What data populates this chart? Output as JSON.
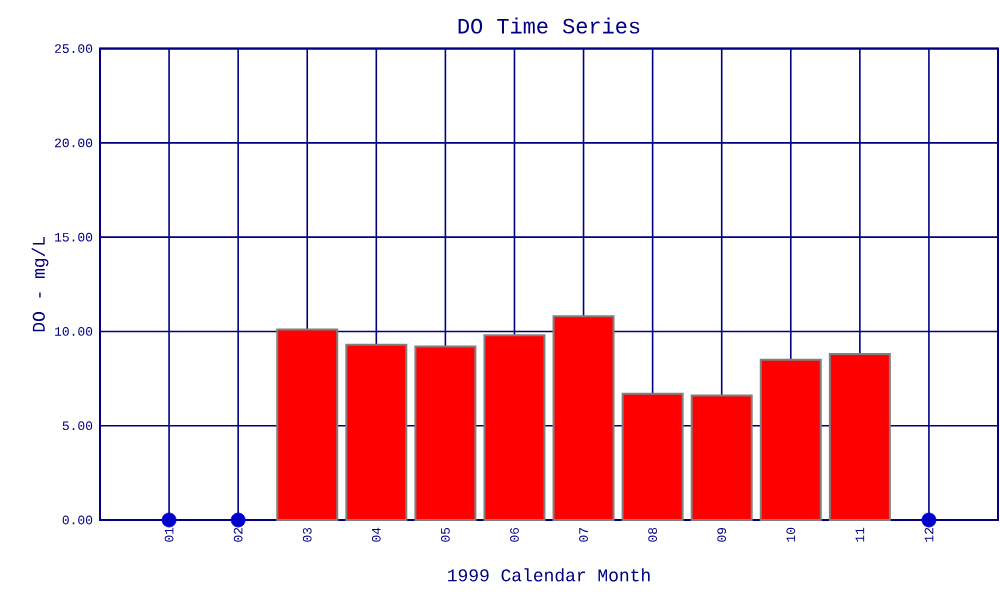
{
  "chart_data": {
    "type": "bar",
    "title": "DO Time Series",
    "xlabel": "1999 Calendar Month",
    "ylabel": "DO - mg/L",
    "categories": [
      "01",
      "02",
      "03",
      "04",
      "05",
      "06",
      "07",
      "08",
      "09",
      "10",
      "11",
      "12"
    ],
    "series": [
      {
        "color": "#ff0000",
        "values": [
          null,
          null,
          10.1,
          9.3,
          9.2,
          9.8,
          10.8,
          6.7,
          6.6,
          8.5,
          8.8,
          null
        ]
      },
      {
        "type": "scatter",
        "color": "#0000cc",
        "values": [
          0,
          0,
          null,
          null,
          null,
          null,
          null,
          null,
          null,
          null,
          null,
          0
        ]
      }
    ],
    "ylim": [
      0,
      25
    ],
    "yticks": [
      {
        "value": 0,
        "label": "0.00"
      },
      {
        "value": 5,
        "label": "5.00"
      },
      {
        "value": 10,
        "label": "10.00"
      },
      {
        "value": 15,
        "label": "15.00"
      },
      {
        "value": 20,
        "label": "20.00"
      },
      {
        "value": 25,
        "label": "25.00"
      }
    ],
    "grid": true
  }
}
